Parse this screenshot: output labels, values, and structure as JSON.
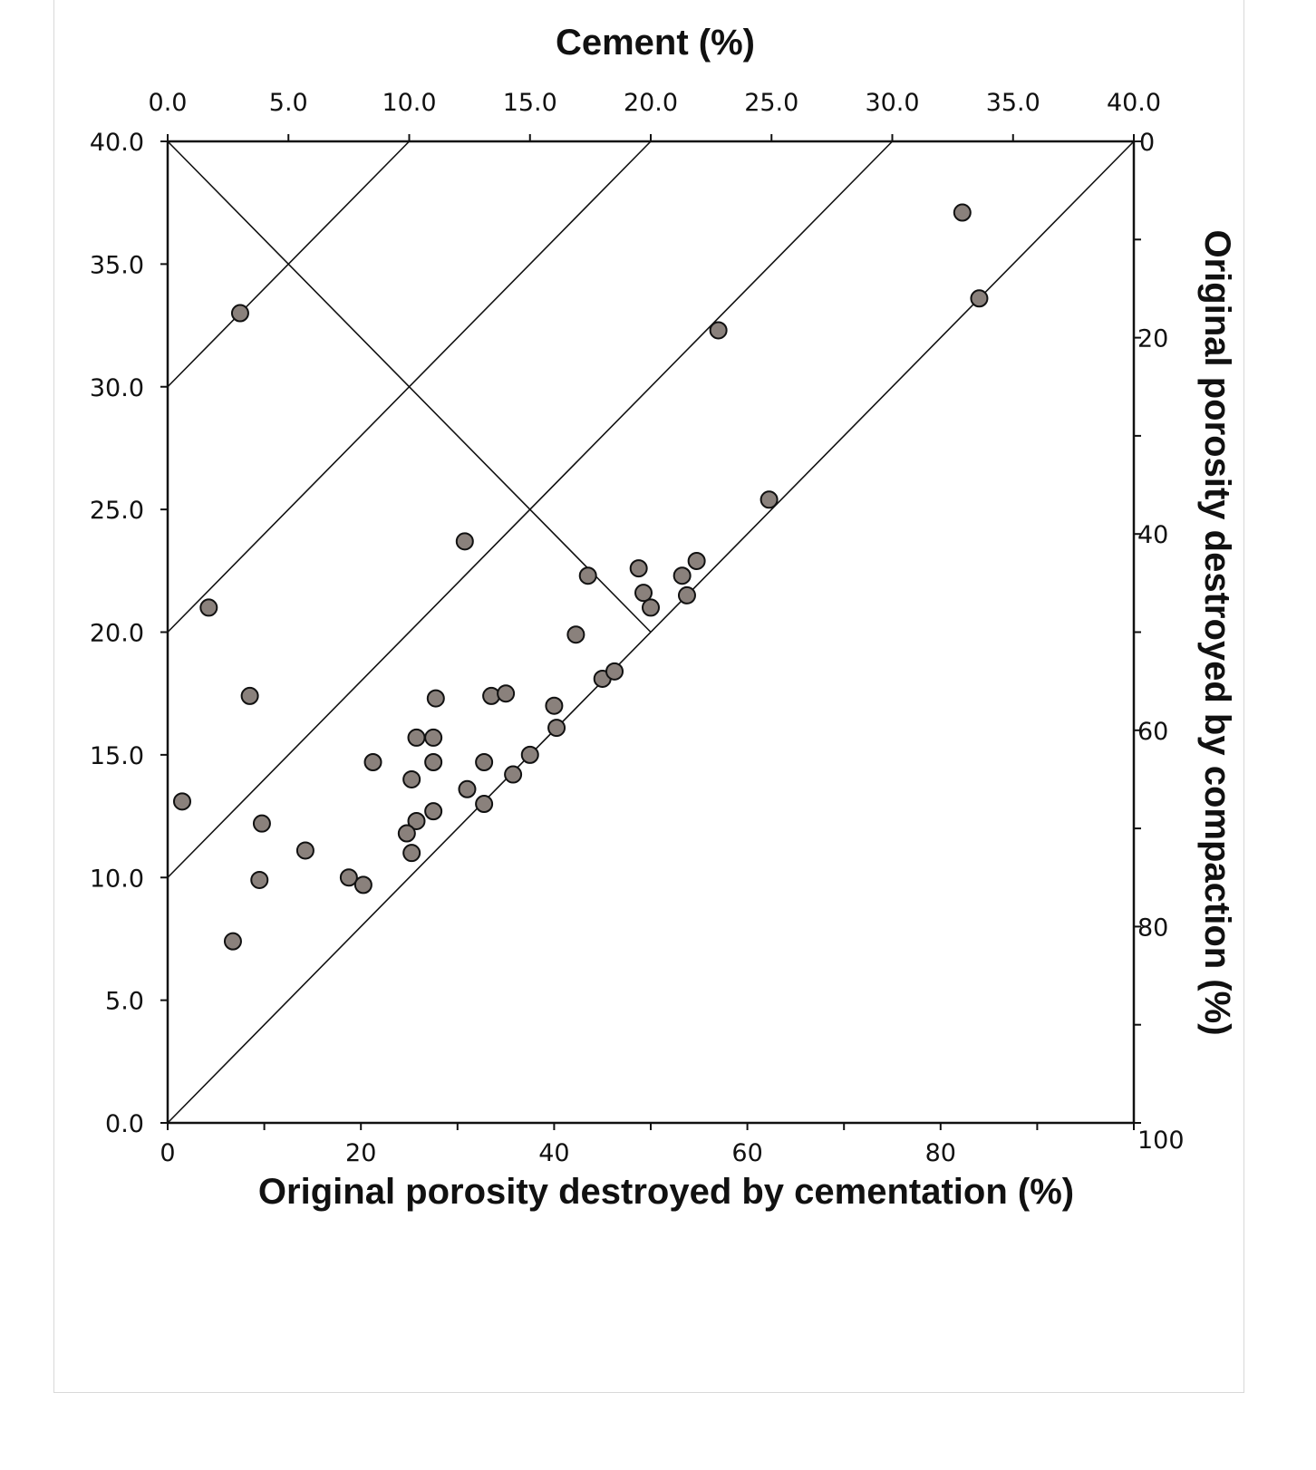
{
  "chart_data": {
    "type": "scatter",
    "title": "Cement (%)",
    "xlabel": "Original porosity destroyed by cementation (%)",
    "ylabel": "",
    "y2label": "Original porosity destroyed by compaction (%)",
    "x2label": "Cement (%)",
    "xlim": [
      0,
      40
    ],
    "ylim": [
      0,
      40
    ],
    "top_axis": {
      "range": [
        0,
        40
      ],
      "ticks": [
        "0.0",
        "5.0",
        "10.0",
        "15.0",
        "20.0",
        "25.0",
        "30.0",
        "35.0",
        "40.0"
      ]
    },
    "left_axis": {
      "range": [
        0,
        40
      ],
      "ticks": [
        "0.0",
        "5.0",
        "10.0",
        "15.0",
        "20.0",
        "25.0",
        "30.0",
        "35.0",
        "40.0"
      ]
    },
    "bottom_axis": {
      "range": [
        0,
        100
      ],
      "ticks": [
        "0",
        "20",
        "40",
        "60",
        "80"
      ]
    },
    "right_axis": {
      "range": [
        0,
        100
      ],
      "reversed": true,
      "ticks": [
        "0",
        "20",
        "40",
        "60",
        "80",
        "100"
      ]
    },
    "grid": false,
    "reference_lines": [
      {
        "from": [
          0,
          30
        ],
        "to": [
          10,
          40
        ]
      },
      {
        "from": [
          0,
          20
        ],
        "to": [
          20,
          40
        ]
      },
      {
        "from": [
          0,
          10
        ],
        "to": [
          30,
          40
        ]
      },
      {
        "from": [
          0,
          0
        ],
        "to": [
          40,
          40
        ]
      },
      {
        "from": [
          0,
          40
        ],
        "to": [
          20,
          20
        ]
      }
    ],
    "marker_color": "#8a817c",
    "points": [
      [
        32.9,
        37.1
      ],
      [
        33.6,
        33.6
      ],
      [
        22.8,
        32.3
      ],
      [
        3.0,
        33.0
      ],
      [
        24.9,
        25.4
      ],
      [
        12.3,
        23.7
      ],
      [
        1.7,
        21.0
      ],
      [
        17.4,
        22.3
      ],
      [
        19.5,
        22.6
      ],
      [
        21.3,
        22.3
      ],
      [
        21.9,
        22.9
      ],
      [
        19.7,
        21.6
      ],
      [
        20.0,
        21.0
      ],
      [
        21.5,
        21.5
      ],
      [
        16.9,
        19.9
      ],
      [
        3.4,
        17.4
      ],
      [
        11.1,
        17.3
      ],
      [
        13.4,
        17.4
      ],
      [
        14.0,
        17.5
      ],
      [
        18.0,
        18.1
      ],
      [
        18.5,
        18.4
      ],
      [
        16.0,
        17.0
      ],
      [
        16.1,
        16.1
      ],
      [
        10.3,
        15.7
      ],
      [
        11.0,
        15.7
      ],
      [
        8.5,
        14.7
      ],
      [
        11.0,
        14.7
      ],
      [
        13.1,
        14.7
      ],
      [
        15.0,
        15.0
      ],
      [
        14.3,
        14.2
      ],
      [
        10.1,
        14.0
      ],
      [
        0.6,
        13.1
      ],
      [
        12.4,
        13.6
      ],
      [
        13.1,
        13.0
      ],
      [
        11.0,
        12.7
      ],
      [
        3.9,
        12.2
      ],
      [
        10.3,
        12.3
      ],
      [
        9.9,
        11.8
      ],
      [
        5.7,
        11.1
      ],
      [
        10.1,
        11.0
      ],
      [
        3.8,
        9.9
      ],
      [
        7.5,
        10.0
      ],
      [
        8.1,
        9.7
      ],
      [
        2.7,
        7.4
      ]
    ]
  }
}
